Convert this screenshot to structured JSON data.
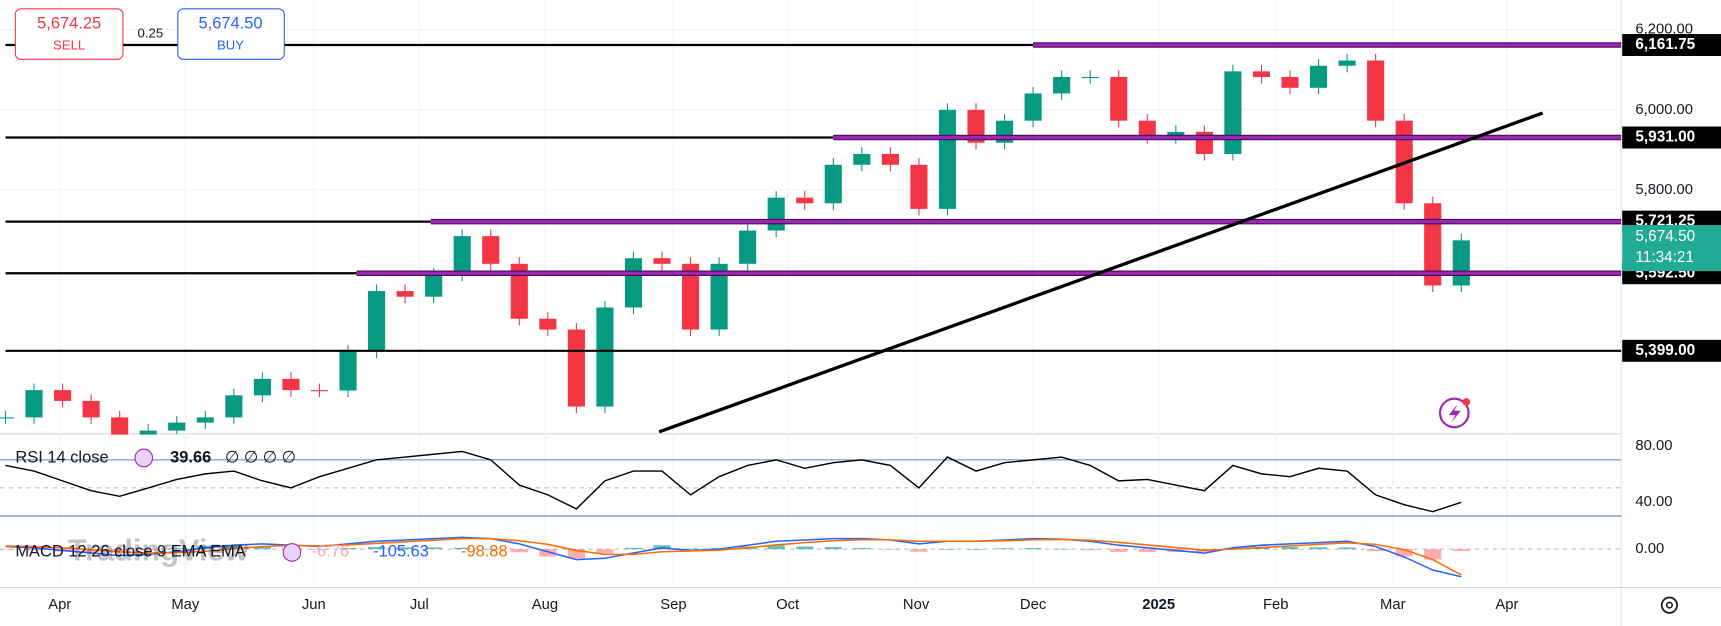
{
  "order_panel": {
    "sell_price": "5,674.25",
    "sell_label": "SELL",
    "spread": "0.25",
    "buy_price": "5,674.50",
    "buy_label": "BUY"
  },
  "chart_data": {
    "type": "candlestick",
    "x": [
      0,
      1,
      2,
      3,
      4,
      5,
      6,
      7,
      8,
      9,
      10,
      11,
      12,
      13,
      14,
      15,
      16,
      17,
      18,
      19,
      20,
      21,
      22,
      23,
      24,
      25,
      26,
      27,
      28,
      29,
      30,
      31,
      32,
      33,
      34,
      35,
      36,
      37,
      38,
      39,
      40,
      41,
      42,
      43,
      44,
      45,
      46,
      47,
      48,
      49,
      50,
      51
    ],
    "values": [
      5233,
      5301,
      5274,
      5233,
      5190,
      5200,
      5220,
      5233,
      5288,
      5329,
      5301,
      5300,
      5397,
      5548,
      5534,
      5589,
      5685,
      5616,
      5479,
      5452,
      5260,
      5507,
      5630,
      5616,
      5452,
      5616,
      5699,
      5781,
      5767,
      5863,
      5890,
      5863,
      5753,
      6000,
      5918,
      5973,
      6041,
      6082,
      6082,
      5973,
      5932,
      5945,
      5890,
      6096,
      6082,
      6055,
      6110,
      6123,
      5973,
      5767,
      5562,
      5674.5
    ],
    "up_color": "#089981",
    "down_color": "#f23645",
    "xlim": [
      0,
      56.6
    ],
    "xticks": [
      {
        "value": 1.9,
        "label": "Apr"
      },
      {
        "value": 6.3,
        "label": "May"
      },
      {
        "value": 10.8,
        "label": "Jun"
      },
      {
        "value": 14.5,
        "label": "Jul"
      },
      {
        "value": 18.9,
        "label": "Aug"
      },
      {
        "value": 23.4,
        "label": "Sep"
      },
      {
        "value": 27.4,
        "label": "Oct"
      },
      {
        "value": 31.9,
        "label": "Nov"
      },
      {
        "value": 36,
        "label": "Dec"
      },
      {
        "value": 40.4,
        "label": "2025"
      },
      {
        "value": 44.5,
        "label": "Feb"
      },
      {
        "value": 48.6,
        "label": "Mar"
      },
      {
        "value": 52.6,
        "label": "Apr"
      }
    ],
    "ylim": [
      5192,
      6274
    ],
    "yticks": [
      {
        "value": 6200,
        "label": "6,200.00"
      },
      {
        "value": 6000,
        "label": "6,000.00"
      },
      {
        "value": 5800,
        "label": "5,800.00"
      }
    ],
    "levels": [
      {
        "value": 6161.75,
        "label": "6,161.75",
        "from": 36
      },
      {
        "value": 5931,
        "label": "5,931.00",
        "from": 29
      },
      {
        "value": 5721.25,
        "label": "5,721.25",
        "from": 14.9
      },
      {
        "value": 5592.5,
        "label": "5,592.50",
        "from": 12.3
      },
      {
        "value": 5399,
        "label": "5,399.00"
      }
    ],
    "level_color": "#9c27b0",
    "trendline": {
      "x": [
        22.9,
        53.85
      ],
      "y": [
        5197,
        5992
      ]
    },
    "current": {
      "value": 5674.5,
      "label": "5,674.50",
      "countdown": "11:34:21",
      "color": "#22ab94"
    },
    "rsi": {
      "label": "RSI 14 close",
      "value_label": "39.66",
      "extra": "∅ ∅ ∅ ∅",
      "values": [
        66,
        62,
        55,
        48,
        44,
        50,
        56,
        60,
        62,
        55,
        50,
        58,
        64,
        70,
        72,
        74,
        76,
        70,
        52,
        45,
        35,
        55,
        62,
        62,
        45,
        58,
        66,
        70,
        64,
        68,
        70,
        66,
        50,
        72,
        62,
        68,
        70,
        72,
        66,
        55,
        56,
        52,
        48,
        66,
        60,
        58,
        64,
        62,
        45,
        38,
        33,
        39.66
      ],
      "ylim": [
        29.8,
        88.6
      ],
      "yticks": [
        {
          "value": 80,
          "label": "80.00"
        },
        {
          "value": 40,
          "label": "40.00"
        }
      ],
      "bands": [
        70,
        50,
        30
      ]
    },
    "macd": {
      "label": "MACD 12 26 close 9 EMA EMA",
      "histogram_label": "-6.76",
      "series": [
        {
          "name": "MACD",
          "color": "#2962ff",
          "value_label": "-105.63",
          "values": [
            10,
            5,
            -5,
            -15,
            -25,
            -20,
            -10,
            5,
            15,
            20,
            15,
            10,
            20,
            30,
            35,
            40,
            45,
            40,
            20,
            -10,
            -40,
            -35,
            -15,
            5,
            -5,
            0,
            15,
            30,
            35,
            40,
            40,
            35,
            20,
            30,
            30,
            35,
            40,
            38,
            30,
            15,
            5,
            -5,
            -15,
            5,
            15,
            20,
            25,
            30,
            10,
            -30,
            -80,
            -105.63
          ]
        },
        {
          "name": "Signal",
          "color": "#ff6d00",
          "value_label": "-98.88",
          "values": [
            12,
            10,
            5,
            -2,
            -10,
            -15,
            -14,
            -8,
            2,
            10,
            14,
            13,
            16,
            22,
            28,
            34,
            40,
            40,
            32,
            18,
            -5,
            -20,
            -20,
            -10,
            -7,
            -4,
            5,
            16,
            25,
            32,
            36,
            36,
            30,
            30,
            30,
            32,
            36,
            37,
            34,
            26,
            16,
            6,
            -4,
            0,
            6,
            12,
            18,
            24,
            18,
            -2,
            -40,
            -98.88
          ]
        }
      ],
      "ylim": [
        -147,
        126
      ],
      "yticks": [
        {
          "value": 0,
          "label": "0.00"
        }
      ]
    },
    "watermark": "TradingView"
  }
}
